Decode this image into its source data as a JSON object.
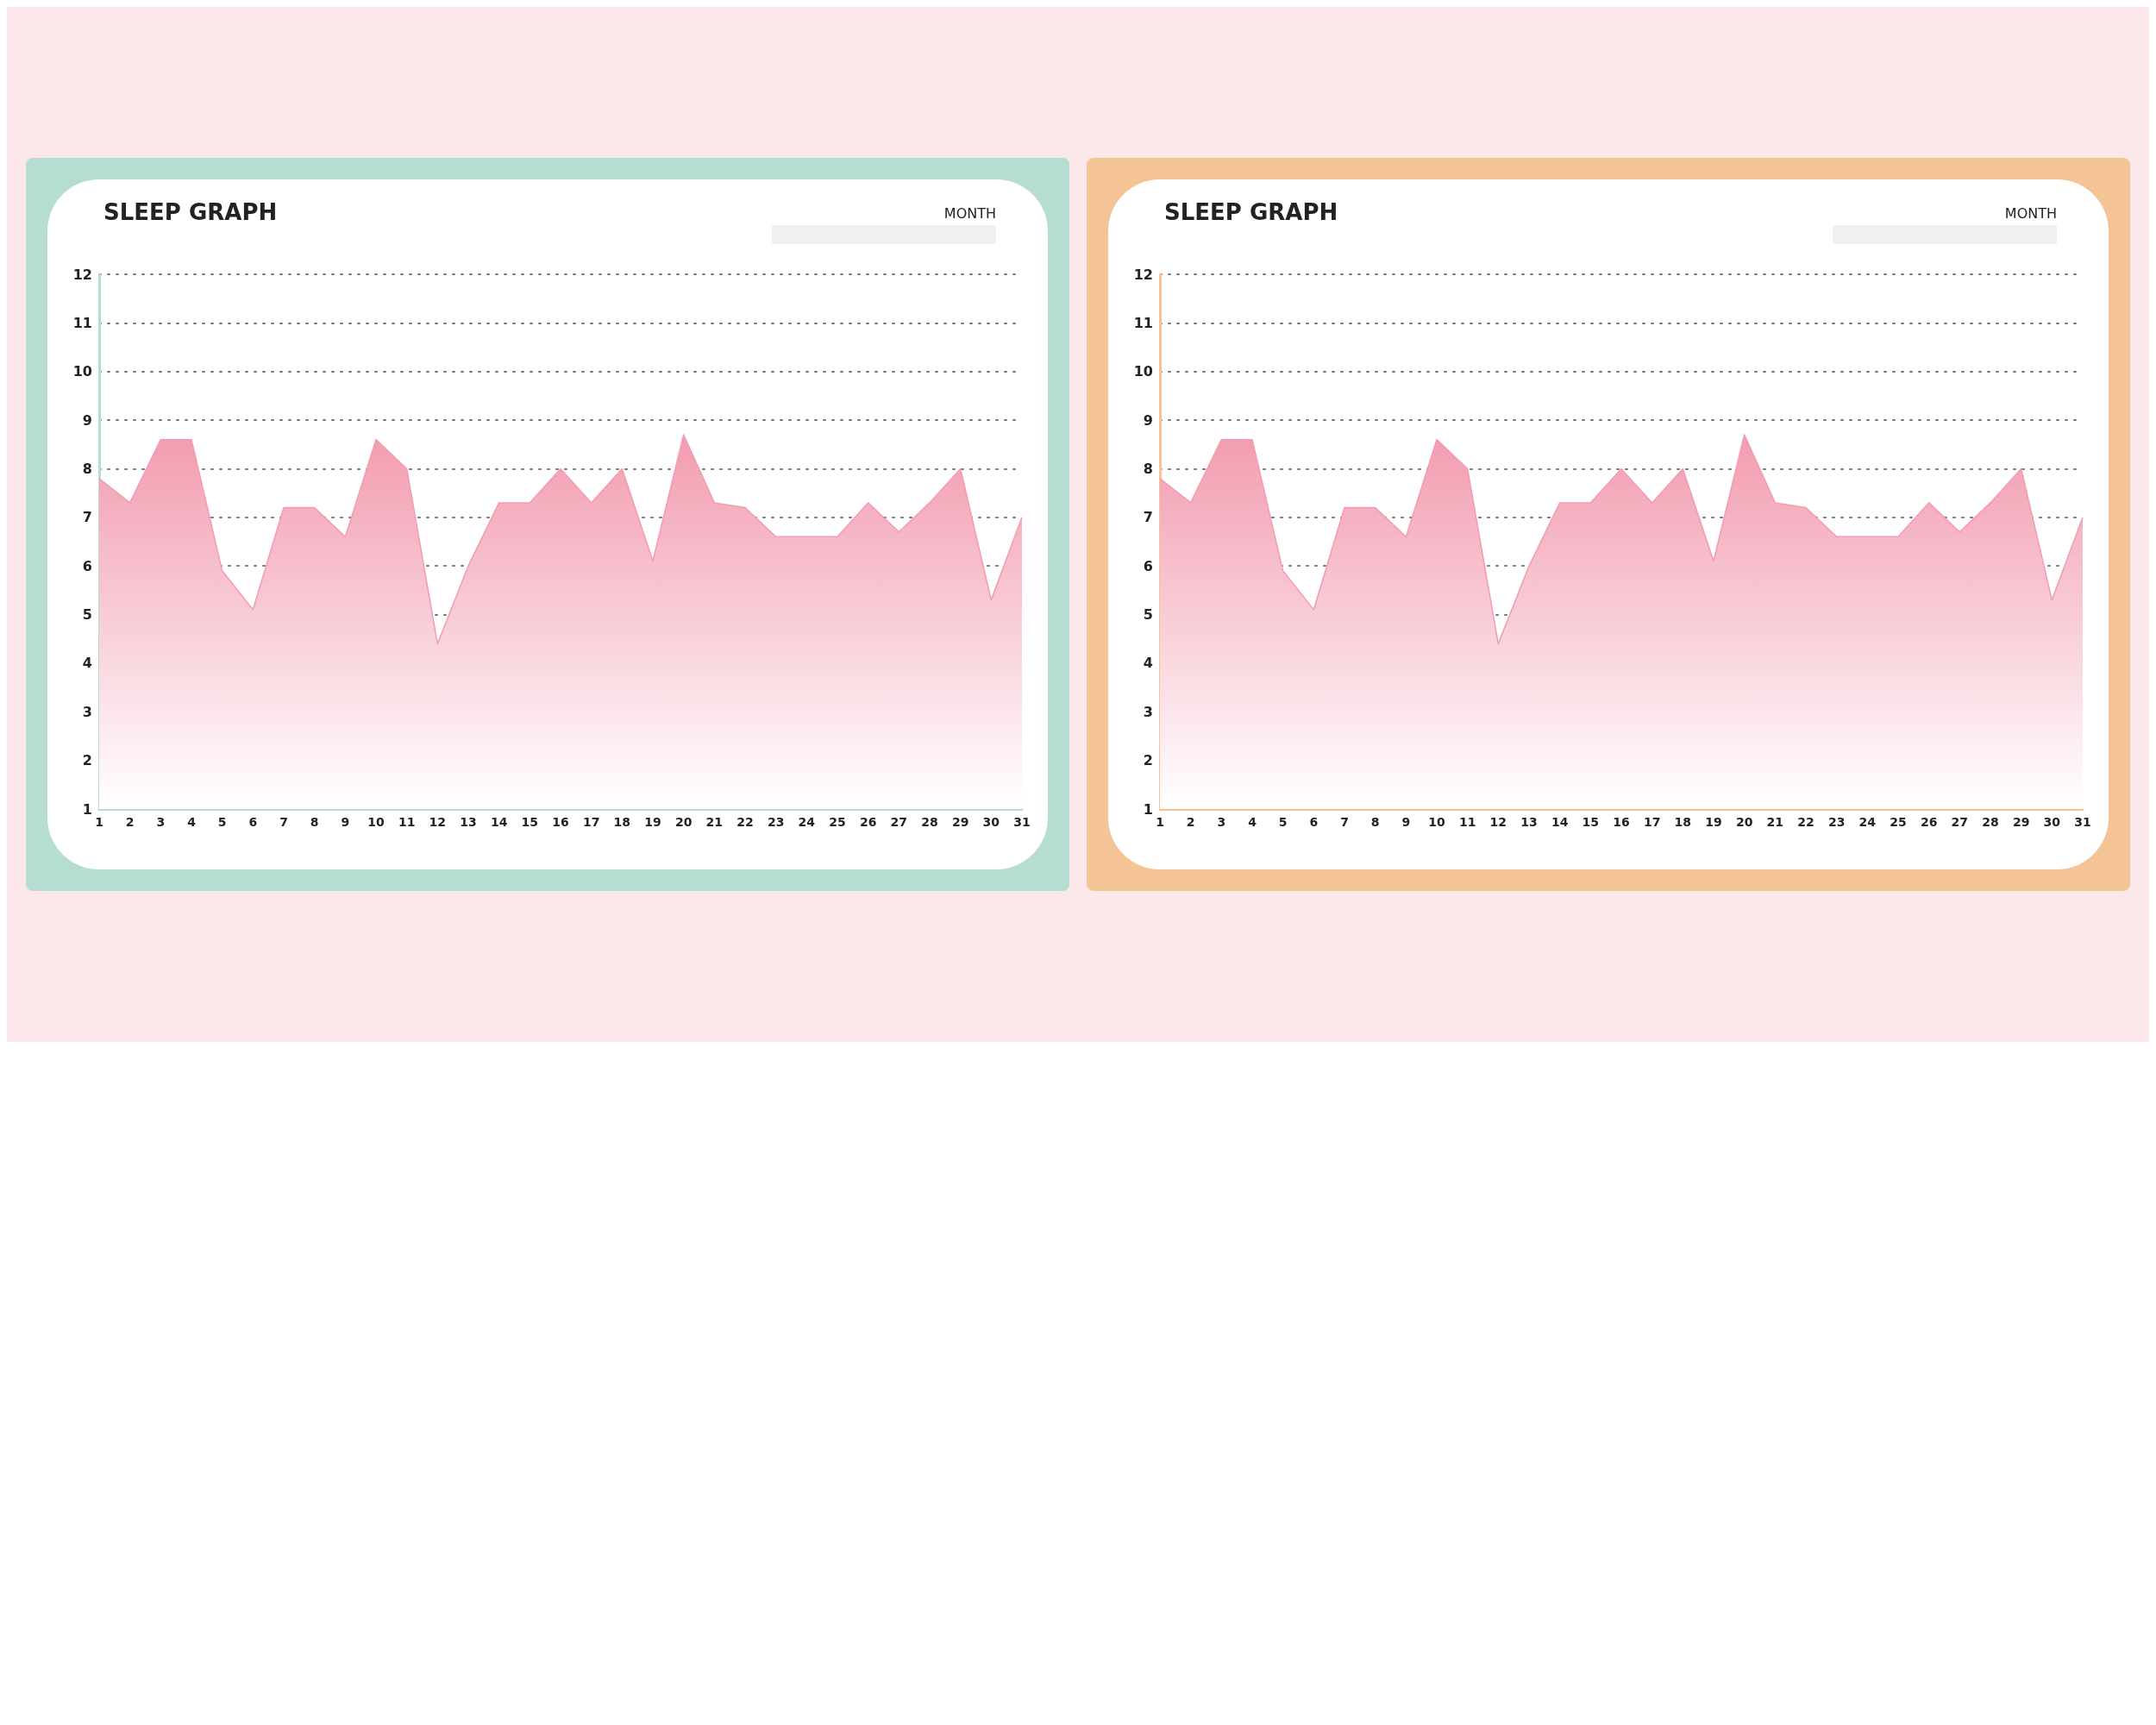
{
  "chart_data": [
    {
      "type": "area",
      "title": "SLEEP GRAPH",
      "annotations": [
        "MONTH"
      ],
      "x": [
        1,
        2,
        3,
        4,
        5,
        6,
        7,
        8,
        9,
        10,
        11,
        12,
        13,
        14,
        15,
        16,
        17,
        18,
        19,
        20,
        21,
        22,
        23,
        24,
        25,
        26,
        27,
        28,
        29,
        30,
        31
      ],
      "series": [
        {
          "color": "#f29cb0",
          "values": [
            7.8,
            7.3,
            8.6,
            8.6,
            5.9,
            5.1,
            7.2,
            7.2,
            6.6,
            8.6,
            8.0,
            4.4,
            6.0,
            7.3,
            7.3,
            8.0,
            7.3,
            8.0,
            6.1,
            8.7,
            7.3,
            7.2,
            6.6,
            6.6,
            6.6,
            7.3,
            6.7,
            7.3,
            8.0,
            5.3,
            7.0
          ]
        }
      ],
      "xlim": [
        1,
        31
      ],
      "xticks": [
        1,
        2,
        3,
        4,
        5,
        6,
        7,
        8,
        9,
        10,
        11,
        12,
        13,
        14,
        15,
        16,
        17,
        18,
        19,
        20,
        21,
        22,
        23,
        24,
        25,
        26,
        27,
        28,
        29,
        30,
        31
      ],
      "ylim": [
        1,
        12
      ],
      "yticks": [
        1,
        2,
        3,
        4,
        5,
        6,
        7,
        8,
        9,
        10,
        11,
        12
      ],
      "grid": "y",
      "marker": "none"
    },
    {
      "type": "area",
      "title": "SLEEP GRAPH",
      "annotations": [
        "MONTH"
      ],
      "x": [
        1,
        2,
        3,
        4,
        5,
        6,
        7,
        8,
        9,
        10,
        11,
        12,
        13,
        14,
        15,
        16,
        17,
        18,
        19,
        20,
        21,
        22,
        23,
        24,
        25,
        26,
        27,
        28,
        29,
        30,
        31
      ],
      "series": [
        {
          "color": "#f29cb0",
          "values": [
            7.8,
            7.3,
            8.6,
            8.6,
            5.9,
            5.1,
            7.2,
            7.2,
            6.6,
            8.6,
            8.0,
            4.4,
            6.0,
            7.3,
            7.3,
            8.0,
            7.3,
            8.0,
            6.1,
            8.7,
            7.3,
            7.2,
            6.6,
            6.6,
            6.6,
            7.3,
            6.7,
            7.3,
            8.0,
            5.3,
            7.0
          ]
        }
      ],
      "xlim": [
        1,
        31
      ],
      "xticks": [
        1,
        2,
        3,
        4,
        5,
        6,
        7,
        8,
        9,
        10,
        11,
        12,
        13,
        14,
        15,
        16,
        17,
        18,
        19,
        20,
        21,
        22,
        23,
        24,
        25,
        26,
        27,
        28,
        29,
        30,
        31
      ],
      "ylim": [
        1,
        12
      ],
      "yticks": [
        1,
        2,
        3,
        4,
        5,
        6,
        7,
        8,
        9,
        10,
        11,
        12
      ],
      "grid": "y",
      "marker": "none"
    }
  ]
}
